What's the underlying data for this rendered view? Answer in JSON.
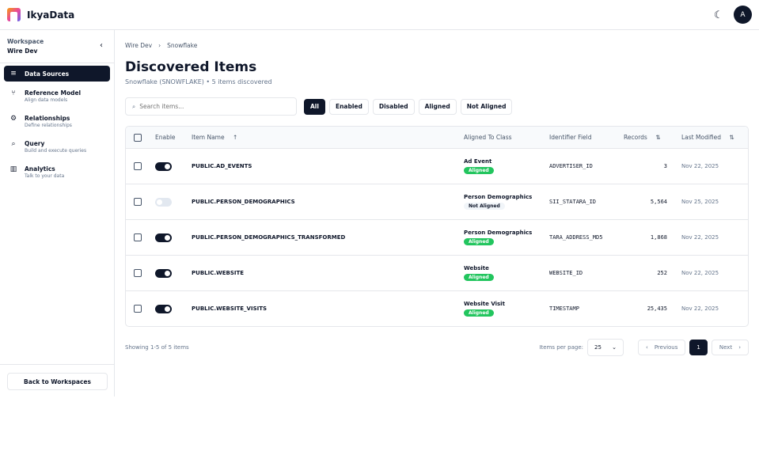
{
  "app": {
    "brand": "IkyaData",
    "avatar": "A",
    "theme_icon": "moon-icon"
  },
  "sidebar": {
    "workspace_label": "Workspace",
    "workspace_name": "Wire Dev",
    "items": [
      {
        "title": "Data Sources",
        "subtitle": "",
        "icon": "database-icon",
        "active": true
      },
      {
        "title": "Reference Model",
        "subtitle": "Align data models",
        "icon": "git-branch-icon"
      },
      {
        "title": "Relationships",
        "subtitle": "Define relationships",
        "icon": "gear-icon"
      },
      {
        "title": "Query",
        "subtitle": "Build and execute queries",
        "icon": "search-icon"
      },
      {
        "title": "Analytics",
        "subtitle": "Talk to your data",
        "icon": "bar-chart-icon"
      }
    ],
    "back": "Back to Workspaces"
  },
  "breadcrumb": [
    "Wire Dev",
    "Snowflake"
  ],
  "page": {
    "title": "Discovered Items",
    "subtitle": "Snowflake (SNOWFLAKE) • 5 items discovered"
  },
  "search": {
    "placeholder": "Search items...",
    "value": ""
  },
  "filters": [
    "All",
    "Enabled",
    "Disabled",
    "Aligned",
    "Not Aligned"
  ],
  "active_filter": "All",
  "table": {
    "headers": {
      "enable": "Enable",
      "name": "Item Name",
      "cls": "Aligned To Class",
      "idf": "Identifier Field",
      "rec": "Records",
      "date": "Last Modified"
    },
    "rows": [
      {
        "enabled": true,
        "name": "PUBLIC.AD_EVENTS",
        "cls": "Ad Event",
        "status": "Aligned",
        "idf": "ADVERTISER_ID",
        "rec": "3",
        "date": "Nov 22, 2025"
      },
      {
        "enabled": false,
        "name": "PUBLIC.PERSON_DEMOGRAPHICS",
        "cls": "Person Demographics",
        "status": "Not Aligned",
        "idf": "SII_STATARA_ID",
        "rec": "5,564",
        "date": "Nov 25, 2025"
      },
      {
        "enabled": true,
        "name": "PUBLIC.PERSON_DEMOGRAPHICS_TRANSFORMED",
        "cls": "Person Demographics",
        "status": "Aligned",
        "idf": "TARA_ADDRESS_MD5",
        "rec": "1,868",
        "date": "Nov 22, 2025"
      },
      {
        "enabled": true,
        "name": "PUBLIC.WEBSITE",
        "cls": "Website",
        "status": "Aligned",
        "idf": "WEBSITE_ID",
        "rec": "252",
        "date": "Nov 22, 2025"
      },
      {
        "enabled": true,
        "name": "PUBLIC.WEBSITE_VISITS",
        "cls": "Website Visit",
        "status": "Aligned",
        "idf": "TIMESTAMP",
        "rec": "25,435",
        "date": "Nov 22, 2025"
      }
    ]
  },
  "footer": {
    "showing": "Showing 1-5 of 5 items",
    "per_page_label": "Items per page:",
    "per_page": "25",
    "prev": "Previous",
    "page": "1",
    "next": "Next"
  },
  "colors": {
    "primary": "#0f172a",
    "aligned": "#22c55e"
  }
}
